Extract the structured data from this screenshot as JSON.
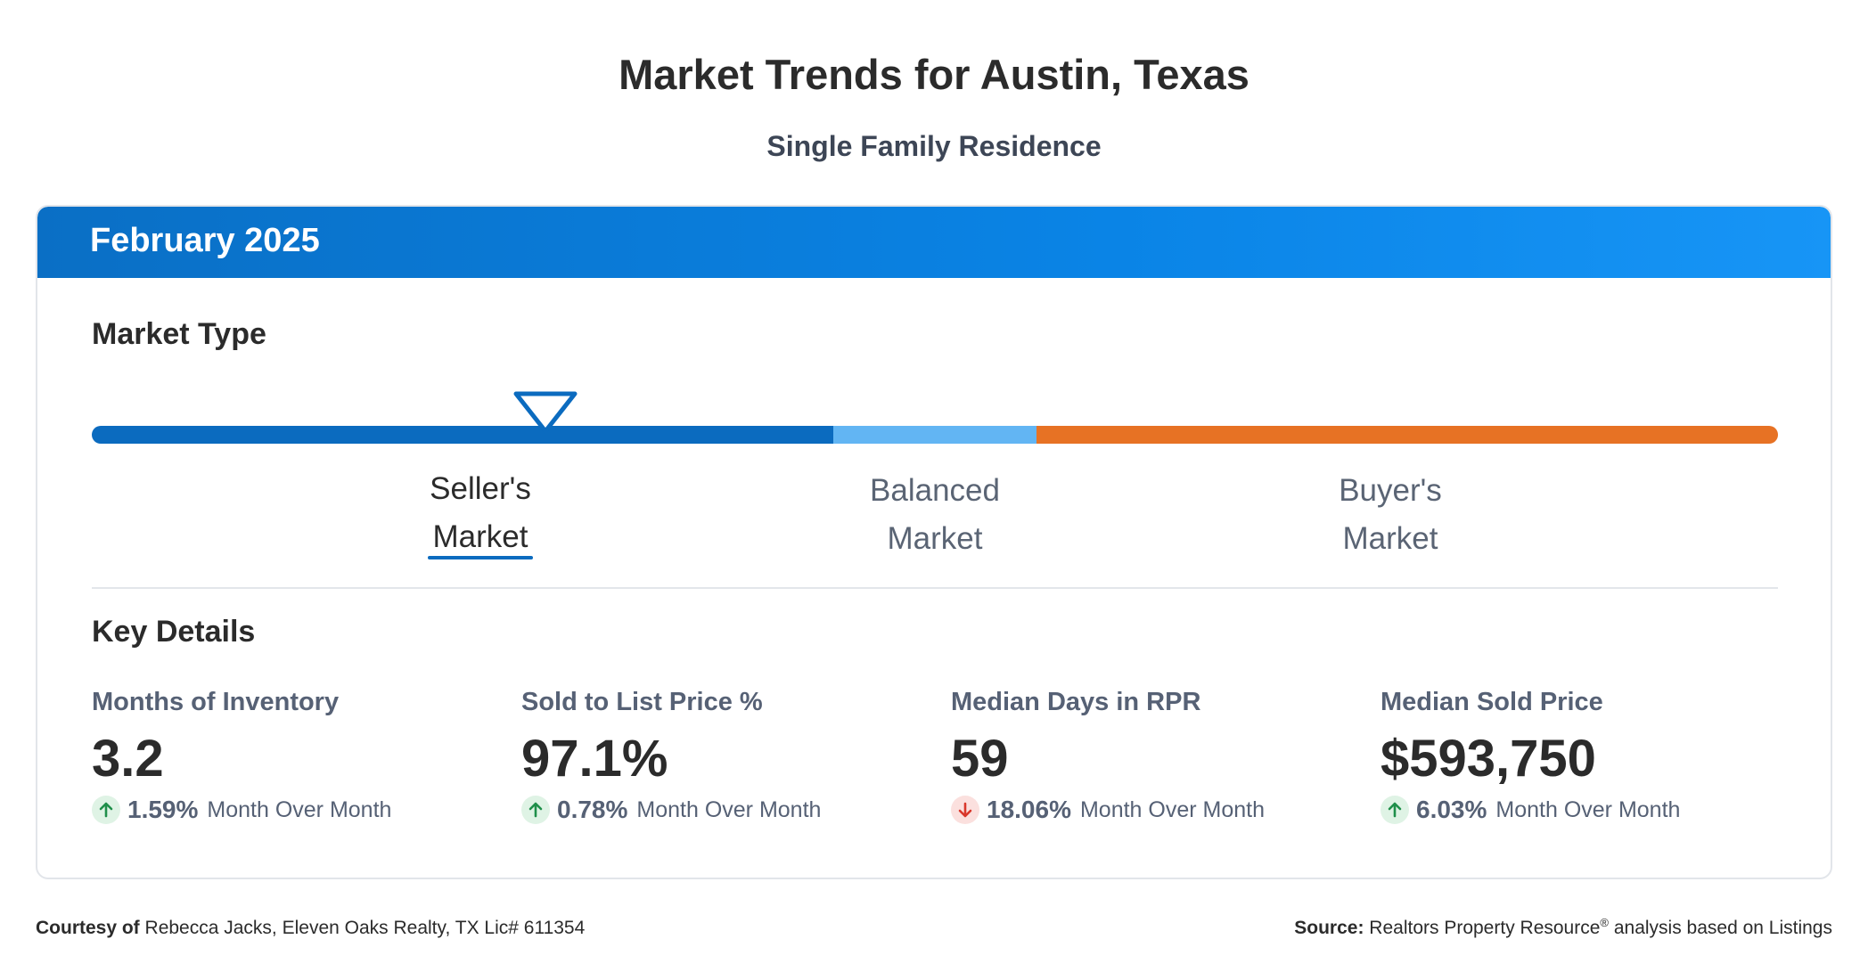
{
  "header": {
    "title": "Market Trends for Austin, Texas",
    "subtitle": "Single Family Residence"
  },
  "card": {
    "period": "February 2025",
    "market_type": {
      "title": "Market Type",
      "segments": [
        {
          "name": "Seller's Market",
          "color": "#0b6bbf"
        },
        {
          "name": "Balanced Market",
          "color": "#62b5f3"
        },
        {
          "name": "Buyer's Market",
          "color": "#e77224"
        }
      ],
      "labels": [
        {
          "line1": "Seller's",
          "line2": "Market",
          "active": true
        },
        {
          "line1": "Balanced",
          "line2": "Market",
          "active": false
        },
        {
          "line1": "Buyer's",
          "line2": "Market",
          "active": false
        }
      ],
      "selected": "Seller's Market",
      "marker_level": 0.27
    },
    "key_details": {
      "title": "Key Details",
      "metrics": [
        {
          "label": "Months of Inventory",
          "value": "3.2",
          "change": "1.59%",
          "direction": "up",
          "change_text": "Month Over Month"
        },
        {
          "label": "Sold to List Price %",
          "value": "97.1%",
          "change": "0.78%",
          "direction": "up",
          "change_text": "Month Over Month"
        },
        {
          "label": "Median Days in RPR",
          "value": "59",
          "change": "18.06%",
          "direction": "down",
          "change_text": "Month Over Month"
        },
        {
          "label": "Median Sold Price",
          "value": "$593,750",
          "change": "6.03%",
          "direction": "up",
          "change_text": "Month Over Month"
        }
      ]
    }
  },
  "footer": {
    "courtesy_label": "Courtesy of",
    "courtesy_text": "Rebecca Jacks, Eleven Oaks Realty, TX Lic# 611354",
    "source_label": "Source:",
    "source_text_1": "Realtors Property Resource",
    "source_reg": "®",
    "source_text_2": " analysis based on Listings"
  },
  "icons": {
    "marker": "triangle-down-icon",
    "up": "arrow-up-icon",
    "down": "arrow-down-icon"
  },
  "colors": {
    "header_blue": "#0a84e6",
    "up_green": "#1f8f4a",
    "down_red": "#d9372b"
  }
}
